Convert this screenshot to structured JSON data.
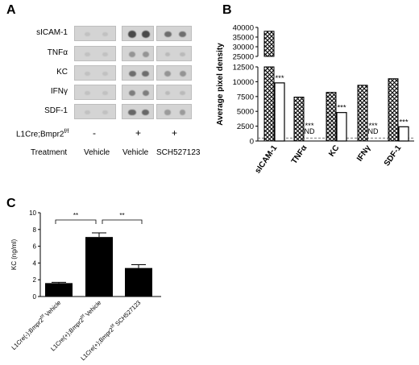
{
  "panels": {
    "a": "A",
    "b": "B",
    "c": "C"
  },
  "blot": {
    "rows": [
      "sICAM-1",
      "TNFα",
      "KC",
      "IFNγ",
      "SDF-1"
    ],
    "genotype_label": "L1Cre;Bmpr2",
    "genotype_sup": "f/f",
    "genotype_signs": [
      "-",
      "+",
      "+"
    ],
    "treatment_label": "Treatment",
    "treatments": [
      "Vehicle",
      "Vehicle",
      "SCH527123"
    ],
    "intensity": [
      [
        0.05,
        0.85,
        0.6
      ],
      [
        0.05,
        0.35,
        0.1
      ],
      [
        0.05,
        0.6,
        0.35
      ],
      [
        0.05,
        0.5,
        0.1
      ],
      [
        0.05,
        0.65,
        0.3
      ]
    ]
  },
  "chart_data": [
    {
      "type": "bar",
      "ylabel": "Average pixel density",
      "categories": [
        "sICAM-1",
        "TNFα",
        "KC",
        "IFNγ",
        "SDF-1"
      ],
      "series": [
        {
          "values": [
            38000,
            7400,
            8200,
            9400,
            10500
          ]
        },
        {
          "values": [
            9800,
            null,
            4800,
            null,
            2400
          ]
        }
      ],
      "annotations": [
        {
          "category": "sICAM-1",
          "text": "***"
        },
        {
          "category": "TNFα",
          "text": "***"
        },
        {
          "category": "TNFα",
          "text": "ND"
        },
        {
          "category": "KC",
          "text": "***"
        },
        {
          "category": "IFNγ",
          "text": "***"
        },
        {
          "category": "IFNγ",
          "text": "ND"
        },
        {
          "category": "SDF-1",
          "text": "***"
        }
      ],
      "ylim_lower": [
        0,
        12500
      ],
      "ylim_upper": [
        25000,
        40000
      ],
      "yticks_lower": [
        "0",
        "2500",
        "5000",
        "7500",
        "10000",
        "12500"
      ],
      "yticks_upper": [
        "25000",
        "30000",
        "35000",
        "40000"
      ],
      "yticks_lower_values": [
        0,
        2500,
        5000,
        7500,
        10000,
        12500
      ],
      "yticks_upper_values": [
        25000,
        30000,
        35000,
        40000
      ],
      "dashed_reference": 500
    },
    {
      "type": "bar",
      "ylabel": "KC (ng/ml)",
      "categories": [
        "L1Cre(-);Bmpr2^{f/f} Vehicle",
        "L1Cre(+);Bmpr2^{f/f} Vehicle",
        "L1Cre(+);Bmpr2^{f/f} SCH527123"
      ],
      "category_parts": [
        {
          "main": "L1Cre(-);Bmpr2",
          "sup": "f/f",
          "tail": " Vehicle"
        },
        {
          "main": "L1Cre(+);Bmpr2",
          "sup": "f/f",
          "tail": " Vehicle"
        },
        {
          "main": "L1Cre(+);Bmpr2",
          "sup": "f/f",
          "tail": " SCH527123"
        }
      ],
      "values": [
        1.6,
        7.1,
        3.4
      ],
      "errors": [
        0.1,
        0.5,
        0.4
      ],
      "ylim": [
        0,
        10
      ],
      "yticks": [
        "0",
        "2",
        "4",
        "6",
        "8",
        "10"
      ],
      "significance": [
        {
          "from": 0,
          "to": 1,
          "text": "**"
        },
        {
          "from": 1,
          "to": 2,
          "text": "**"
        }
      ]
    }
  ]
}
